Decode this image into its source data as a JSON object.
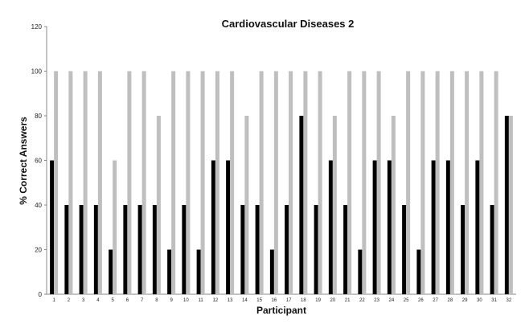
{
  "chart_data": {
    "type": "bar",
    "title": "Cardiovascular Diseases 2",
    "xlabel": "Participant",
    "ylabel": "% Correct Answers",
    "ylim": [
      0,
      120
    ],
    "yticks": [
      0,
      20,
      40,
      60,
      80,
      100,
      120
    ],
    "grid": false,
    "legend": "none",
    "categories": [
      "1",
      "2",
      "3",
      "4",
      "5",
      "6",
      "7",
      "8",
      "9",
      "10",
      "11",
      "12",
      "13",
      "14",
      "15",
      "16",
      "17",
      "18",
      "19",
      "20",
      "21",
      "22",
      "23",
      "24",
      "25",
      "26",
      "27",
      "28",
      "29",
      "30",
      "31",
      "32"
    ],
    "series": [
      {
        "color": "#000000",
        "values": [
          60,
          40,
          40,
          40,
          20,
          40,
          40,
          40,
          20,
          40,
          20,
          60,
          60,
          40,
          40,
          20,
          40,
          80,
          40,
          60,
          40,
          20,
          60,
          60,
          40,
          20,
          60,
          60,
          40,
          60,
          40,
          80
        ]
      },
      {
        "color": "#bfbfbf",
        "values": [
          100,
          100,
          100,
          100,
          60,
          100,
          100,
          80,
          100,
          100,
          100,
          100,
          100,
          80,
          100,
          100,
          100,
          100,
          100,
          80,
          100,
          100,
          100,
          80,
          100,
          100,
          100,
          100,
          100,
          100,
          100,
          80
        ]
      }
    ]
  }
}
